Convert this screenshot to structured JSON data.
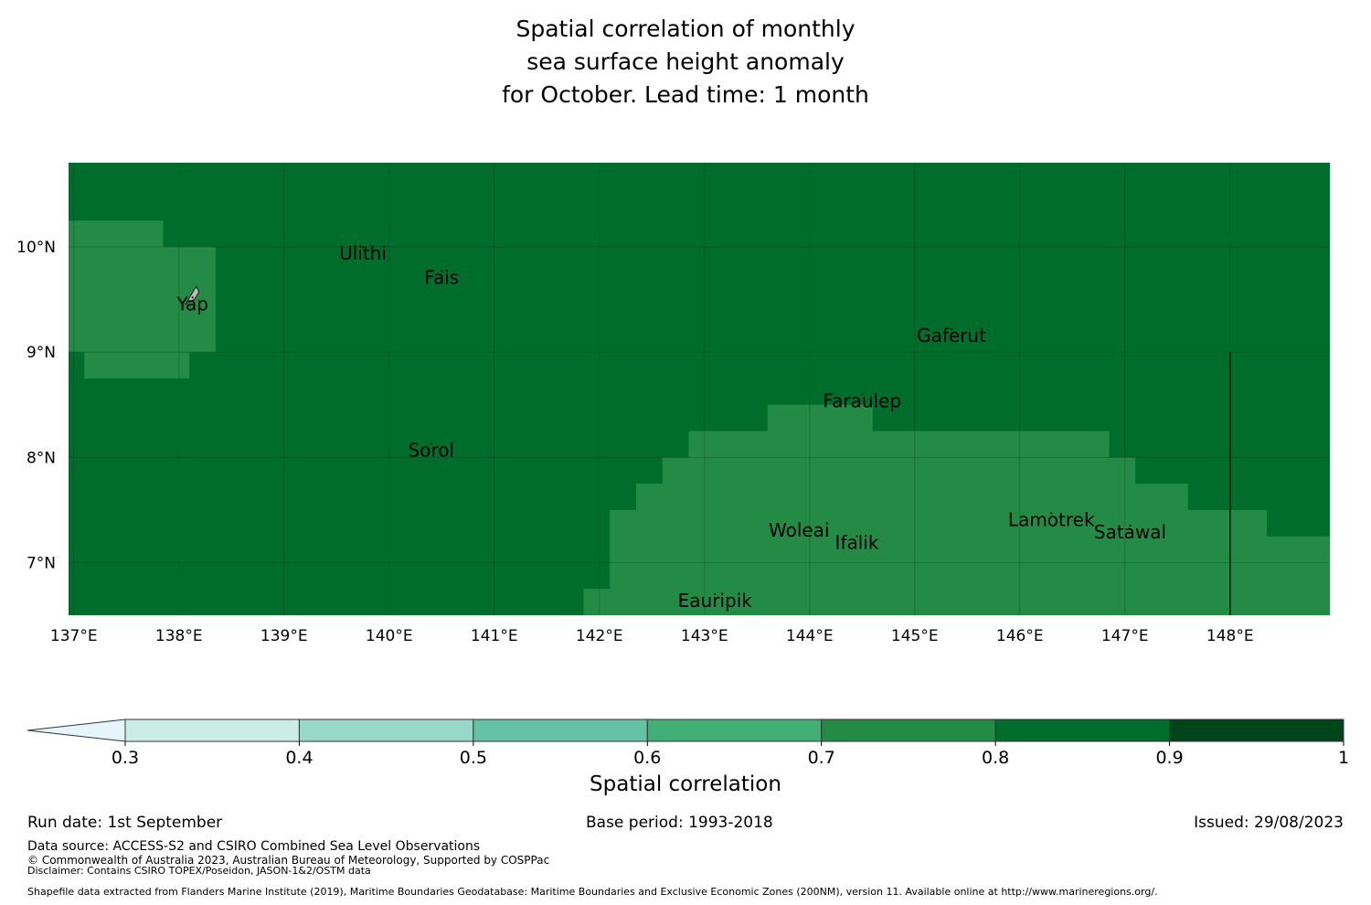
{
  "title": "Spatial correlation of monthly\nsea surface height anomaly\nfor October. Lead time: 1 month",
  "map": {
    "lon_ticks": [
      "137°E",
      "138°E",
      "139°E",
      "140°E",
      "141°E",
      "142°E",
      "143°E",
      "144°E",
      "145°E",
      "146°E",
      "147°E",
      "148°E"
    ],
    "lat_ticks": [
      "10°N",
      "9°N",
      "8°N",
      "7°N"
    ],
    "lon_range": [
      136.95,
      148.95
    ],
    "lat_range": [
      6.5,
      10.8
    ],
    "background_class": "0.8-0.9",
    "places": [
      {
        "name": "Ulithi",
        "lon": 139.75,
        "lat": 10.0
      },
      {
        "name": "Fais",
        "lon": 140.5,
        "lat": 9.77
      },
      {
        "name": "Yap",
        "lon": 138.13,
        "lat": 9.52
      },
      {
        "name": "Gaferut",
        "lon": 145.35,
        "lat": 9.22
      },
      {
        "name": "Faraulep",
        "lon": 144.5,
        "lat": 8.6
      },
      {
        "name": "Sorol",
        "lon": 140.4,
        "lat": 8.13
      },
      {
        "name": "Woleai",
        "lon": 143.9,
        "lat": 7.37
      },
      {
        "name": "Ifalik",
        "lon": 144.45,
        "lat": 7.25
      },
      {
        "name": "Lamotrek",
        "lon": 146.3,
        "lat": 7.47
      },
      {
        "name": "Satawal",
        "lon": 147.05,
        "lat": 7.35
      },
      {
        "name": "Eauripik",
        "lon": 143.1,
        "lat": 6.7
      }
    ],
    "regions_0.7_0.8": [
      [
        [
          136.95,
          10.25
        ],
        [
          137.85,
          10.25
        ],
        [
          137.85,
          10.0
        ],
        [
          138.35,
          10.0
        ],
        [
          138.35,
          9.0
        ],
        [
          138.1,
          9.0
        ],
        [
          138.1,
          8.75
        ],
        [
          137.1,
          8.75
        ],
        [
          137.1,
          9.0
        ],
        [
          136.95,
          9.0
        ]
      ],
      [
        [
          141.85,
          6.5
        ],
        [
          148.95,
          6.5
        ],
        [
          148.95,
          7.25
        ],
        [
          148.35,
          7.25
        ],
        [
          148.35,
          7.5
        ],
        [
          147.6,
          7.5
        ],
        [
          147.6,
          7.75
        ],
        [
          147.1,
          7.75
        ],
        [
          147.1,
          8.0
        ],
        [
          146.85,
          8.0
        ],
        [
          146.85,
          8.25
        ],
        [
          144.6,
          8.25
        ],
        [
          144.6,
          8.5
        ],
        [
          143.6,
          8.5
        ],
        [
          143.6,
          8.25
        ],
        [
          142.85,
          8.25
        ],
        [
          142.85,
          8.0
        ],
        [
          142.6,
          8.0
        ],
        [
          142.6,
          7.75
        ],
        [
          142.35,
          7.75
        ],
        [
          142.35,
          7.5
        ],
        [
          142.1,
          7.5
        ],
        [
          142.1,
          6.75
        ],
        [
          141.85,
          6.75
        ]
      ]
    ],
    "eez_boundary": [
      [
        148.0,
        9.0
      ],
      [
        148.0,
        6.5
      ]
    ]
  },
  "colorbar": {
    "ticks": [
      "0.3",
      "0.4",
      "0.5",
      "0.6",
      "0.7",
      "0.8",
      "0.9",
      "1"
    ],
    "colors": [
      "#e5f5f9",
      "#ccece6",
      "#99d8c9",
      "#66c2a4",
      "#41ae76",
      "#238b45",
      "#006d2c",
      "#00441b"
    ],
    "label": "Spatial correlation"
  },
  "footer": {
    "run_date": "Run date: 1st September",
    "base_period": "Base period: 1993-2018",
    "issued": "Issued: 29/08/2023",
    "data_source": "Data source: ACCESS-S2 and CSIRO Combined Sea Level Observations",
    "copyright": "© Commonwealth of Australia 2023, Australian Bureau of Meteorology, Supported by COSPPac",
    "disclaimer": "Disclaimer: Contains CSIRO TOPEX/Poseidon, JASON-1&2/OSTM data",
    "shapefile": "Shapefile data extracted from Flanders Marine Institute (2019), Maritime Boundaries Geodatabase: Maritime Boundaries and Exclusive Economic Zones (200NM), version 11. Available online at http://www.marineregions.org/."
  }
}
